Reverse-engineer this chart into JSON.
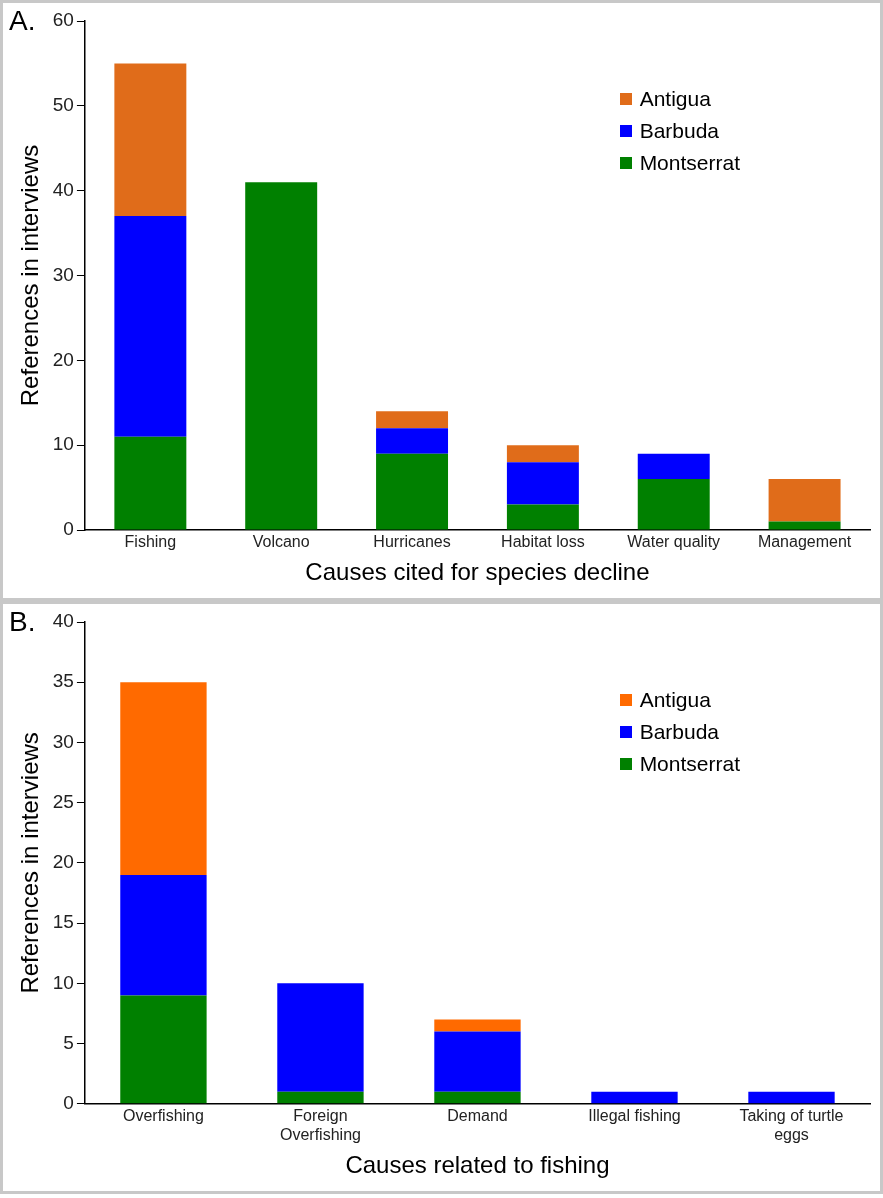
{
  "chart_data": [
    {
      "type": "bar",
      "stacked": true,
      "xlabel": "Causes cited for species decline",
      "ylabel": "References in interviews",
      "annotations": [
        "A."
      ],
      "categories": [
        "Fishing",
        "Volcano",
        "Hurricanes",
        "Habitat loss",
        "Water quality",
        "Management"
      ],
      "series": [
        {
          "name": "Montserrat",
          "color": "#008000",
          "values": [
            11,
            41,
            9,
            3,
            6,
            1
          ]
        },
        {
          "name": "Barbuda",
          "color": "#0000ff",
          "values": [
            26,
            0,
            3,
            5,
            3,
            0
          ]
        },
        {
          "name": "Antigua",
          "color": "#e06c1a",
          "values": [
            18,
            0,
            2,
            2,
            0,
            5
          ]
        }
      ],
      "ylim": [
        0,
        60
      ],
      "yticks": [
        0,
        10,
        20,
        30,
        40,
        50,
        60
      ],
      "grid": false,
      "legend": "top right"
    },
    {
      "type": "bar",
      "stacked": true,
      "xlabel": "Causes related to fishing",
      "ylabel": "References in interviews",
      "annotations": [
        "B."
      ],
      "categories": [
        "Overfishing",
        "Foreign Overfishing",
        "Demand",
        "Illegal fishing",
        "Taking of turtle eggs"
      ],
      "series": [
        {
          "name": "Montserrat",
          "color": "#008000",
          "values": [
            9,
            1,
            1,
            0,
            0
          ]
        },
        {
          "name": "Barbuda",
          "color": "#0000ff",
          "values": [
            10,
            9,
            5,
            1,
            1
          ]
        },
        {
          "name": "Antigua",
          "color": "#ff6a00",
          "values": [
            16,
            0,
            1,
            0,
            0
          ]
        }
      ],
      "ylim": [
        0,
        40
      ],
      "yticks": [
        0,
        5,
        10,
        15,
        20,
        25,
        30,
        35,
        40
      ],
      "grid": false,
      "legend": "top right"
    }
  ]
}
